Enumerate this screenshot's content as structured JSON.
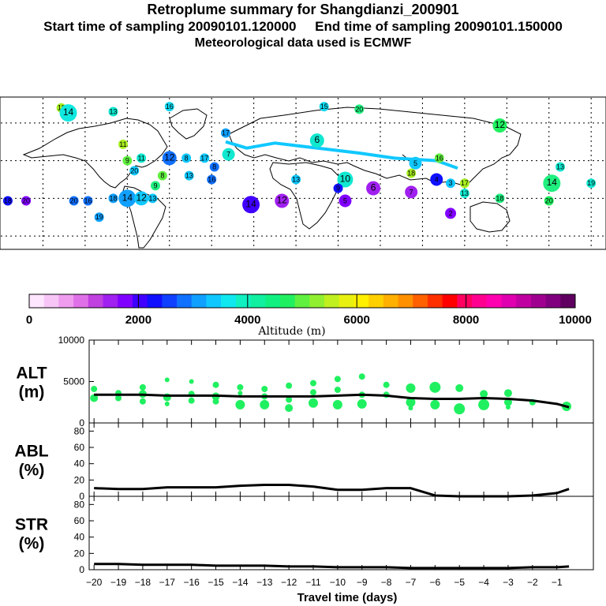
{
  "header": {
    "title": "Retroplume summary for Shangdianzi_200901",
    "start_label": "Start time of sampling 20090101.120000",
    "end_label": "End time of sampling 20090101.150000",
    "met_label": "Meteorological data used is ECMWF"
  },
  "colorbar": {
    "ticks": [
      "0",
      "2000",
      "4000",
      "6000",
      "8000",
      "10000"
    ],
    "title": "Altitude (m)",
    "colors": [
      "#ffe6ff",
      "#f7c6f7",
      "#ef9cef",
      "#e070e8",
      "#c040e0",
      "#a020f0",
      "#8000ff",
      "#4000ff",
      "#1010ff",
      "#1040ff",
      "#1070ff",
      "#10a0ff",
      "#10c8ff",
      "#10e8f0",
      "#10f0c0",
      "#10f0a0",
      "#10f080",
      "#20f060",
      "#60f040",
      "#90f030",
      "#c0f020",
      "#e8f010",
      "#fff000",
      "#ffd000",
      "#ffb000",
      "#ff9000",
      "#ff6000",
      "#ff3000",
      "#ff0000",
      "#ff0060",
      "#ff0090",
      "#ff00b0",
      "#e000b0",
      "#c000a0",
      "#a00090",
      "#800080",
      "#600060"
    ]
  },
  "map": {
    "labels": [
      {
        "n": "11",
        "lon": -137,
        "lat": 72,
        "c": "#a8f020"
      },
      {
        "n": "14",
        "lon": -132,
        "lat": 68,
        "c": "#10e8e0"
      },
      {
        "n": "13",
        "lon": -100,
        "lat": 69,
        "c": "#10e8d0"
      },
      {
        "n": "16",
        "lon": -60,
        "lat": 73,
        "c": "#10d8f0"
      },
      {
        "n": "15",
        "lon": 50,
        "lat": 73,
        "c": "#10d8f0"
      },
      {
        "n": "20",
        "lon": 75,
        "lat": 71,
        "c": "#20f080"
      },
      {
        "n": "12",
        "lon": 175,
        "lat": 58,
        "c": "#20f060"
      },
      {
        "n": "6",
        "lon": 45,
        "lat": 46,
        "c": "#10e8d0"
      },
      {
        "n": "17",
        "lon": -20,
        "lat": 52,
        "c": "#10a0ff"
      },
      {
        "n": "11",
        "lon": -93,
        "lat": 43,
        "c": "#a8f020"
      },
      {
        "n": "9",
        "lon": -90,
        "lat": 30,
        "c": "#60f040"
      },
      {
        "n": "11",
        "lon": -80,
        "lat": 32,
        "c": "#10e8d0"
      },
      {
        "n": "12",
        "lon": -60,
        "lat": 32,
        "c": "#1070ff"
      },
      {
        "n": "8",
        "lon": -48,
        "lat": 32,
        "c": "#10c8ff"
      },
      {
        "n": "17",
        "lon": -35,
        "lat": 32,
        "c": "#10c8ff"
      },
      {
        "n": "7",
        "lon": -18,
        "lat": 35,
        "c": "#10e8d0"
      },
      {
        "n": "9",
        "lon": -70,
        "lat": 10,
        "c": "#20f080"
      },
      {
        "n": "20",
        "lon": -85,
        "lat": 22,
        "c": "#10c8ff"
      },
      {
        "n": "8",
        "lon": -65,
        "lat": 18,
        "c": "#60f040"
      },
      {
        "n": "13",
        "lon": -46,
        "lat": 18,
        "c": "#10c8ff"
      },
      {
        "n": "16",
        "lon": -30,
        "lat": 15,
        "c": "#1070ff"
      },
      {
        "n": "8",
        "lon": -28,
        "lat": 25,
        "c": "#1070ff"
      },
      {
        "n": "18",
        "lon": -100,
        "lat": 0,
        "c": "#10a0ff"
      },
      {
        "n": "14",
        "lon": -90,
        "lat": 0,
        "c": "#10a0ff"
      },
      {
        "n": "12",
        "lon": -80,
        "lat": 0,
        "c": "#10c8ff"
      },
      {
        "n": "13",
        "lon": -72,
        "lat": 0,
        "c": "#10c8ff"
      },
      {
        "n": "19",
        "lon": -110,
        "lat": -15,
        "c": "#10a0ff"
      },
      {
        "n": "18",
        "lon": -175,
        "lat": -2,
        "c": "#1010ff"
      },
      {
        "n": "20",
        "lon": -162,
        "lat": -2,
        "c": "#8000ff"
      },
      {
        "n": "20",
        "lon": -128,
        "lat": -2,
        "c": "#1070ff"
      },
      {
        "n": "16",
        "lon": -118,
        "lat": -2,
        "c": "#1070ff"
      },
      {
        "n": "14",
        "lon": -2,
        "lat": -5,
        "c": "#4000ff"
      },
      {
        "n": "12",
        "lon": 20,
        "lat": -2,
        "c": "#a020f0"
      },
      {
        "n": "13",
        "lon": 30,
        "lat": 15,
        "c": "#10c8ff"
      },
      {
        "n": "10",
        "lon": 65,
        "lat": 15,
        "c": "#10e8d0"
      },
      {
        "n": "9",
        "lon": 60,
        "lat": 8,
        "c": "#1010ff"
      },
      {
        "n": "5",
        "lon": 65,
        "lat": -2,
        "c": "#8000ff"
      },
      {
        "n": "6",
        "lon": 85,
        "lat": 8,
        "c": "#a020f0"
      },
      {
        "n": "7",
        "lon": 112,
        "lat": 5,
        "c": "#a020f0"
      },
      {
        "n": "5",
        "lon": 115,
        "lat": 28,
        "c": "#10c8ff"
      },
      {
        "n": "4",
        "lon": 130,
        "lat": 15,
        "c": "#1010ff"
      },
      {
        "n": "3",
        "lon": 140,
        "lat": 12,
        "c": "#10c8ff"
      },
      {
        "n": "2",
        "lon": 140,
        "lat": -12,
        "c": "#8000ff"
      },
      {
        "n": "18",
        "lon": 112,
        "lat": 20,
        "c": "#a8f020"
      },
      {
        "n": "16",
        "lon": 132,
        "lat": 32,
        "c": "#60f040"
      },
      {
        "n": "17",
        "lon": 150,
        "lat": 12,
        "c": "#a8f020"
      },
      {
        "n": "13",
        "lon": 150,
        "lat": 4,
        "c": "#10e8d0"
      },
      {
        "n": "18",
        "lon": 175,
        "lat": 0,
        "c": "#20f080"
      },
      {
        "n": "14",
        "lon": 212,
        "lat": 12,
        "c": "#20f080"
      },
      {
        "n": "13",
        "lon": 218,
        "lat": 25,
        "c": "#10e8d0"
      },
      {
        "n": "19",
        "lon": 240,
        "lat": 12,
        "c": "#10e8d0"
      },
      {
        "n": "20",
        "lon": 210,
        "lat": -2,
        "c": "#20f060"
      }
    ]
  },
  "panels": [
    {
      "label_line1": "ALT",
      "label_line2": "(m)",
      "yticks": [
        "10000",
        "5000",
        "0"
      ]
    },
    {
      "label_line1": "ABL",
      "label_line2": "(%)",
      "yticks": [
        "80",
        "60",
        "40",
        "20",
        "0"
      ]
    },
    {
      "label_line1": "STR",
      "label_line2": "(%)",
      "yticks": [
        "80",
        "60",
        "40",
        "20",
        "0"
      ]
    }
  ],
  "chart_data": {
    "type": "line",
    "title": "Retroplume summary for Shangdianzi_200901",
    "xlabel": "Travel time (days)",
    "x_tick_labels": [
      "-20",
      "-19",
      "-18",
      "-17",
      "-16",
      "-15",
      "-14",
      "-13",
      "-12",
      "-11",
      "-10",
      "-9",
      "-8",
      "-7",
      "-6",
      "-5",
      "-4",
      "-3",
      "-2",
      "-1"
    ],
    "xlim": [
      -20.2,
      0.5
    ],
    "x": [
      -20,
      -19,
      -18,
      -17,
      -16,
      -15,
      -14,
      -13,
      -12,
      -11,
      -10,
      -9,
      -8,
      -7,
      -6,
      -5,
      -4,
      -3,
      -2,
      -1,
      -0.5
    ],
    "series": [
      {
        "name": "ALT (m)",
        "ylim": [
          0,
          10000
        ],
        "values": [
          3400,
          3400,
          3400,
          3300,
          3300,
          3300,
          3200,
          3200,
          3200,
          3200,
          3300,
          3400,
          3300,
          3000,
          2900,
          2900,
          3000,
          2900,
          2700,
          2300,
          1900
        ]
      },
      {
        "name": "ABL (%)",
        "ylim": [
          0,
          90
        ],
        "values": [
          10,
          9,
          9,
          11,
          11,
          11,
          13,
          14,
          14,
          12,
          8,
          8,
          10,
          10,
          1,
          0,
          0,
          0,
          1,
          4,
          9
        ]
      },
      {
        "name": "STR (%)",
        "ylim": [
          0,
          90
        ],
        "values": [
          7,
          7,
          6,
          6,
          6,
          5,
          5,
          5,
          4,
          4,
          3,
          3,
          3,
          2,
          2,
          2,
          2,
          2,
          3,
          3,
          4
        ]
      }
    ],
    "cluster_points": [
      {
        "x": -20,
        "alt": 4100,
        "r": 4
      },
      {
        "x": -20,
        "alt": 3000,
        "r": 5
      },
      {
        "x": -19,
        "alt": 3600,
        "r": 4
      },
      {
        "x": -19,
        "alt": 3000,
        "r": 4
      },
      {
        "x": -18,
        "alt": 4300,
        "r": 4
      },
      {
        "x": -18,
        "alt": 3500,
        "r": 5
      },
      {
        "x": -18,
        "alt": 2600,
        "r": 4
      },
      {
        "x": -17,
        "alt": 5200,
        "r": 3
      },
      {
        "x": -17,
        "alt": 3100,
        "r": 5
      },
      {
        "x": -17,
        "alt": 2300,
        "r": 3
      },
      {
        "x": -16,
        "alt": 5000,
        "r": 3
      },
      {
        "x": -16,
        "alt": 3500,
        "r": 4
      },
      {
        "x": -16,
        "alt": 2700,
        "r": 4
      },
      {
        "x": -15,
        "alt": 4600,
        "r": 4
      },
      {
        "x": -15,
        "alt": 3200,
        "r": 5
      },
      {
        "x": -15,
        "alt": 2600,
        "r": 4
      },
      {
        "x": -14,
        "alt": 4300,
        "r": 4
      },
      {
        "x": -14,
        "alt": 3600,
        "r": 3
      },
      {
        "x": -14,
        "alt": 2200,
        "r": 6
      },
      {
        "x": -13,
        "alt": 4100,
        "r": 4
      },
      {
        "x": -13,
        "alt": 3200,
        "r": 4
      },
      {
        "x": -13,
        "alt": 2200,
        "r": 6
      },
      {
        "x": -12,
        "alt": 4500,
        "r": 4
      },
      {
        "x": -12,
        "alt": 2800,
        "r": 4
      },
      {
        "x": -12,
        "alt": 1800,
        "r": 5
      },
      {
        "x": -11,
        "alt": 4800,
        "r": 4
      },
      {
        "x": -11,
        "alt": 3700,
        "r": 4
      },
      {
        "x": -11,
        "alt": 2400,
        "r": 6
      },
      {
        "x": -10,
        "alt": 5300,
        "r": 4
      },
      {
        "x": -10,
        "alt": 4000,
        "r": 4
      },
      {
        "x": -10,
        "alt": 2200,
        "r": 6
      },
      {
        "x": -9,
        "alt": 5600,
        "r": 4
      },
      {
        "x": -9,
        "alt": 3400,
        "r": 4
      },
      {
        "x": -9,
        "alt": 2300,
        "r": 6
      },
      {
        "x": -8,
        "alt": 4600,
        "r": 4
      },
      {
        "x": -8,
        "alt": 3400,
        "r": 4
      },
      {
        "x": -7,
        "alt": 4200,
        "r": 6
      },
      {
        "x": -7,
        "alt": 2500,
        "r": 6
      },
      {
        "x": -7,
        "alt": 1800,
        "r": 3
      },
      {
        "x": -6,
        "alt": 4300,
        "r": 7
      },
      {
        "x": -6,
        "alt": 2200,
        "r": 6
      },
      {
        "x": -5,
        "alt": 4200,
        "r": 5
      },
      {
        "x": -5,
        "alt": 1700,
        "r": 7
      },
      {
        "x": -4,
        "alt": 3500,
        "r": 5
      },
      {
        "x": -4,
        "alt": 2200,
        "r": 7
      },
      {
        "x": -3,
        "alt": 3600,
        "r": 5
      },
      {
        "x": -3,
        "alt": 2500,
        "r": 5
      },
      {
        "x": -3,
        "alt": 1900,
        "r": 3
      },
      {
        "x": -2,
        "alt": 2500,
        "r": 4
      },
      {
        "x": -0.6,
        "alt": 2000,
        "r": 6
      }
    ]
  }
}
